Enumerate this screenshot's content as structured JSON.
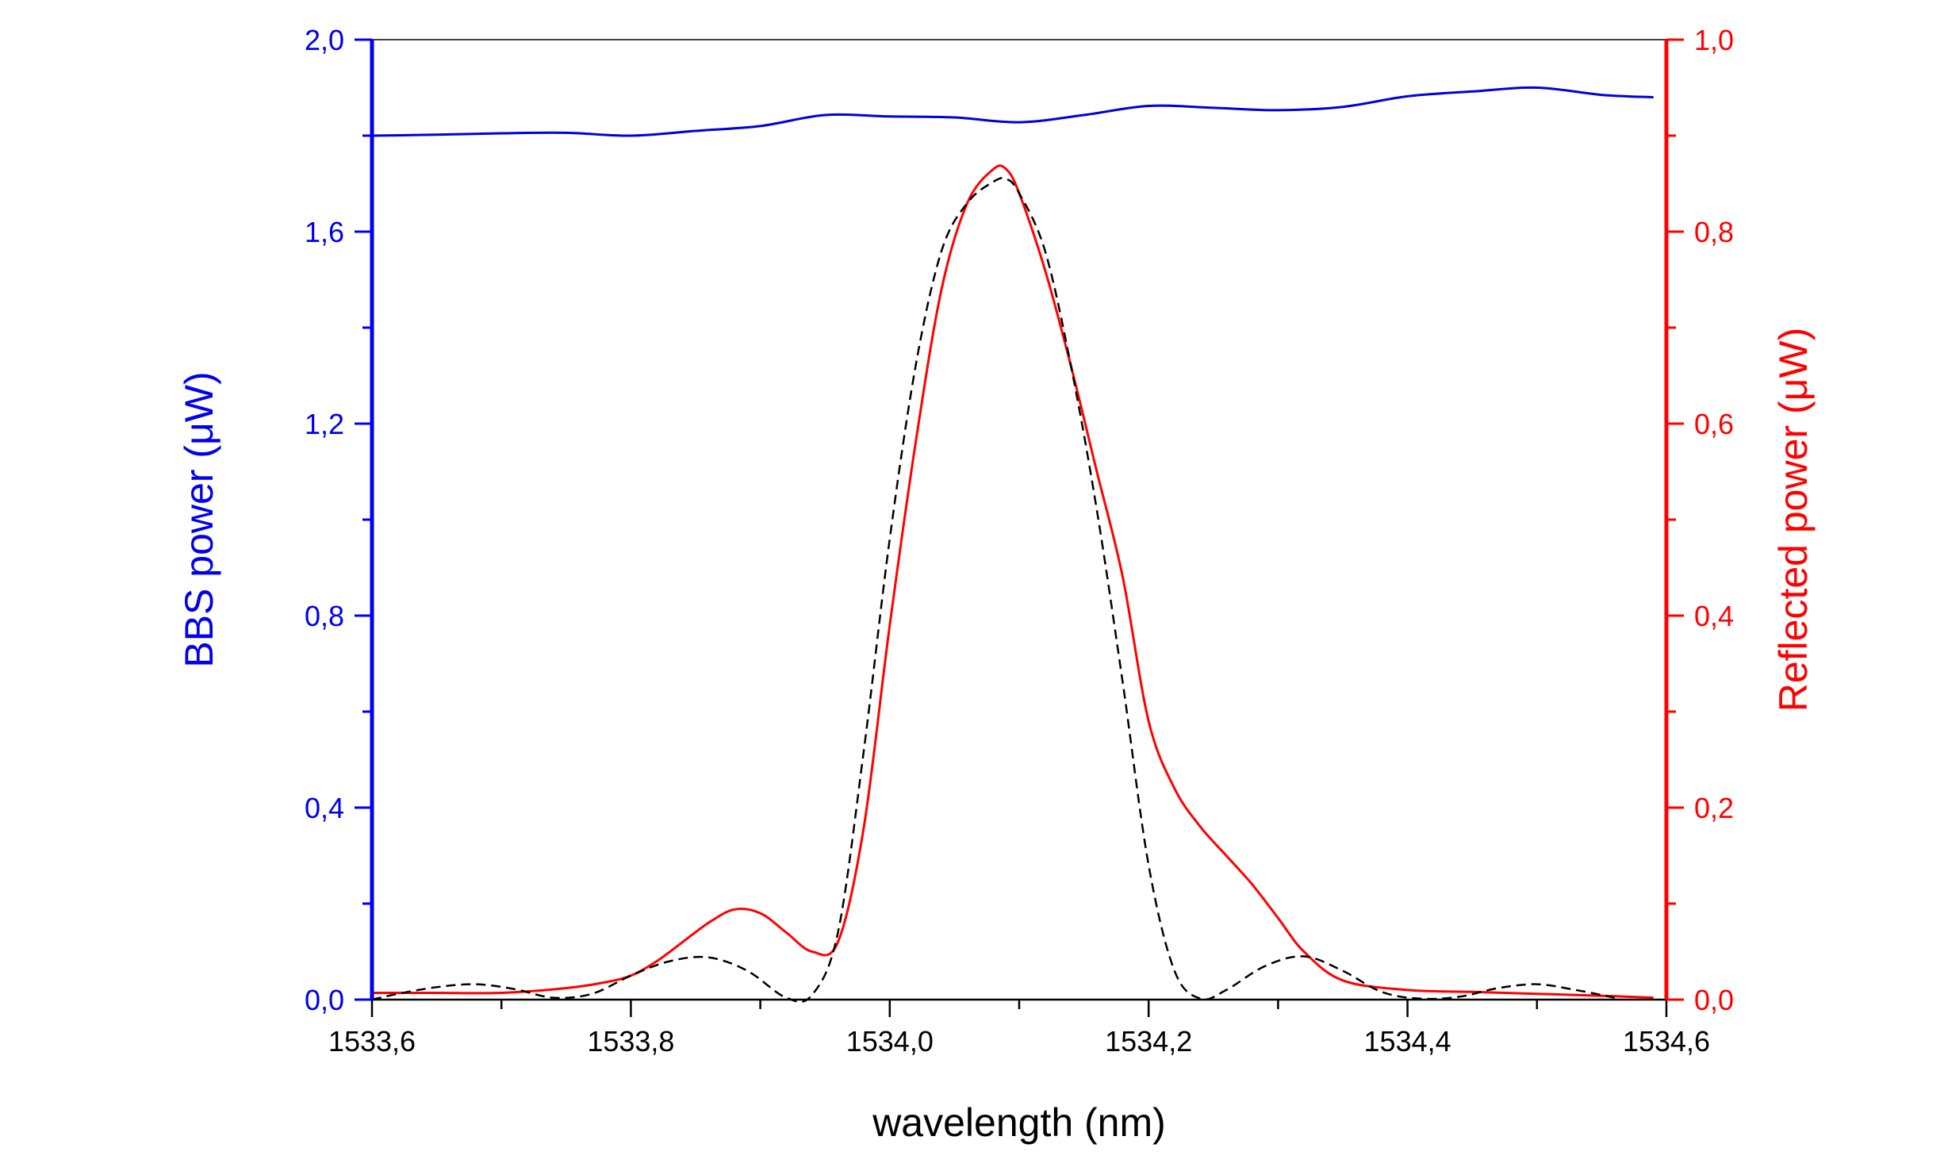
{
  "chart_data": {
    "type": "line",
    "xlabel": "wavelength (nm)",
    "ylabel_left": "BBS power (μW)",
    "ylabel_right": "Reflected power (μW)",
    "xlim": [
      1533.6,
      1534.6
    ],
    "ylim_left": [
      0.0,
      2.0
    ],
    "ylim_right": [
      0.0,
      1.0
    ],
    "x_ticks": [
      "1533,6",
      "1533,8",
      "1534,0",
      "1534,2",
      "1534,4",
      "1534,6"
    ],
    "y_left_ticks": [
      "0,0",
      "0,4",
      "0,8",
      "1,2",
      "1,6",
      "2,0"
    ],
    "y_right_ticks": [
      "0,0",
      "0,2",
      "0,4",
      "0,6",
      "0,8",
      "1,0"
    ],
    "grid": false,
    "colors": {
      "left_axis": "#0000ee",
      "right_axis": "#ff0000",
      "fit": "#000000"
    },
    "series": [
      {
        "axis": "left",
        "color": "#0000dd",
        "style": "solid",
        "x": [
          1533.6,
          1533.65,
          1533.7,
          1533.75,
          1533.8,
          1533.85,
          1533.9,
          1533.95,
          1534.0,
          1534.05,
          1534.1,
          1534.15,
          1534.2,
          1534.25,
          1534.3,
          1534.35,
          1534.4,
          1534.45,
          1534.5,
          1534.55,
          1534.59
        ],
        "y": [
          1.8,
          1.802,
          1.805,
          1.806,
          1.8,
          1.81,
          1.82,
          1.843,
          1.84,
          1.838,
          1.828,
          1.843,
          1.862,
          1.858,
          1.853,
          1.86,
          1.882,
          1.892,
          1.9,
          1.885,
          1.88
        ]
      },
      {
        "axis": "right",
        "color": "#ff0000",
        "style": "solid",
        "x": [
          1533.6,
          1533.65,
          1533.7,
          1533.75,
          1533.78,
          1533.8,
          1533.82,
          1533.84,
          1533.86,
          1533.88,
          1533.9,
          1533.92,
          1533.94,
          1533.96,
          1533.98,
          1534.0,
          1534.02,
          1534.04,
          1534.06,
          1534.08,
          1534.09,
          1534.1,
          1534.12,
          1534.14,
          1534.16,
          1534.18,
          1534.2,
          1534.22,
          1534.24,
          1534.26,
          1534.28,
          1534.3,
          1534.32,
          1534.35,
          1534.4,
          1534.45,
          1534.5,
          1534.55,
          1534.59
        ],
        "y": [
          0.007,
          0.007,
          0.007,
          0.012,
          0.018,
          0.025,
          0.04,
          0.06,
          0.08,
          0.094,
          0.09,
          0.07,
          0.05,
          0.06,
          0.18,
          0.39,
          0.58,
          0.74,
          0.83,
          0.865,
          0.865,
          0.84,
          0.76,
          0.66,
          0.55,
          0.44,
          0.29,
          0.22,
          0.18,
          0.15,
          0.12,
          0.085,
          0.05,
          0.02,
          0.01,
          0.008,
          0.006,
          0.004,
          0.002
        ]
      },
      {
        "axis": "right",
        "color": "#000000",
        "style": "dashed",
        "x": [
          1533.6,
          1533.62,
          1533.65,
          1533.68,
          1533.71,
          1533.74,
          1533.77,
          1533.8,
          1533.83,
          1533.86,
          1533.89,
          1533.92,
          1533.94,
          1533.96,
          1533.98,
          1534.0,
          1534.02,
          1534.04,
          1534.06,
          1534.08,
          1534.09,
          1534.1,
          1534.12,
          1534.14,
          1534.16,
          1534.18,
          1534.2,
          1534.22,
          1534.24,
          1534.26,
          1534.29,
          1534.32,
          1534.35,
          1534.38,
          1534.41,
          1534.44,
          1534.47,
          1534.5,
          1534.53,
          1534.56
        ],
        "y": [
          0.0,
          0.006,
          0.013,
          0.016,
          0.011,
          0.002,
          0.006,
          0.025,
          0.04,
          0.044,
          0.03,
          0.002,
          0.005,
          0.07,
          0.26,
          0.48,
          0.66,
          0.78,
          0.83,
          0.852,
          0.855,
          0.84,
          0.78,
          0.66,
          0.51,
          0.33,
          0.14,
          0.03,
          0.001,
          0.01,
          0.035,
          0.045,
          0.03,
          0.008,
          0.001,
          0.003,
          0.012,
          0.016,
          0.01,
          0.002
        ]
      }
    ]
  }
}
